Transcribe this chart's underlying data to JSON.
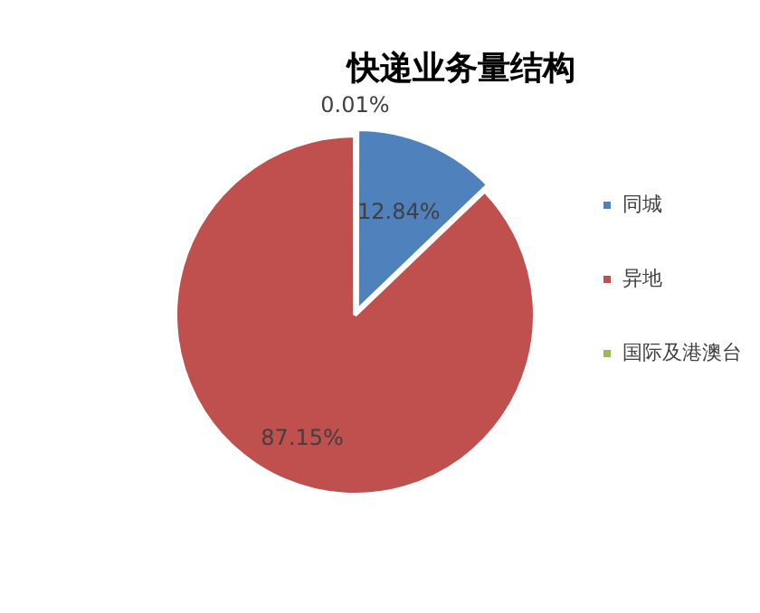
{
  "chart_data": {
    "type": "pie",
    "title": "快递业务量结构",
    "categories": [
      "同城",
      "异地",
      "国际及港澳台"
    ],
    "values": [
      12.84,
      87.15,
      0.01
    ],
    "colors": [
      "#4f81bd",
      "#c0504d",
      "#9bbb59"
    ],
    "value_labels": [
      "12.84%",
      "87.15%",
      "0.01%"
    ],
    "legend": "right"
  }
}
